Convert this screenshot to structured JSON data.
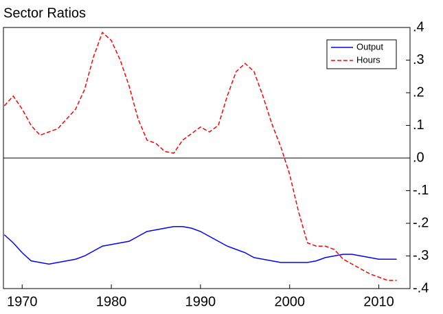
{
  "chart_data": {
    "type": "line",
    "title": "Sector Ratios",
    "x": [
      1968,
      1969,
      1970,
      1971,
      1972,
      1973,
      1974,
      1975,
      1976,
      1977,
      1978,
      1979,
      1980,
      1981,
      1982,
      1983,
      1984,
      1985,
      1986,
      1987,
      1988,
      1989,
      1990,
      1991,
      1992,
      1993,
      1994,
      1995,
      1996,
      1997,
      1998,
      1999,
      2000,
      2001,
      2002,
      2003,
      2004,
      2005,
      2006,
      2007,
      2008,
      2009,
      2010,
      2011,
      2012
    ],
    "series": [
      {
        "name": "Output",
        "color": "#0000ff",
        "dash": false,
        "values": [
          -0.235,
          -0.26,
          -0.29,
          -0.315,
          -0.32,
          -0.325,
          -0.32,
          -0.315,
          -0.31,
          -0.3,
          -0.285,
          -0.27,
          -0.265,
          -0.26,
          -0.255,
          -0.24,
          -0.225,
          -0.22,
          -0.215,
          -0.21,
          -0.21,
          -0.215,
          -0.225,
          -0.24,
          -0.255,
          -0.27,
          -0.28,
          -0.29,
          -0.305,
          -0.31,
          -0.315,
          -0.32,
          -0.32,
          -0.32,
          -0.32,
          -0.315,
          -0.305,
          -0.3,
          -0.295,
          -0.295,
          -0.3,
          -0.305,
          -0.31,
          -0.31,
          -0.31
        ]
      },
      {
        "name": "Hours",
        "color": "#ff0000",
        "dash": true,
        "values": [
          0.16,
          0.19,
          0.15,
          0.1,
          0.07,
          0.08,
          0.09,
          0.12,
          0.15,
          0.21,
          0.31,
          0.385,
          0.36,
          0.3,
          0.22,
          0.12,
          0.055,
          0.045,
          0.02,
          0.015,
          0.055,
          0.075,
          0.095,
          0.08,
          0.1,
          0.19,
          0.265,
          0.29,
          0.265,
          0.19,
          0.105,
          0.035,
          -0.05,
          -0.165,
          -0.26,
          -0.27,
          -0.27,
          -0.28,
          -0.31,
          -0.325,
          -0.34,
          -0.355,
          -0.365,
          -0.375,
          -0.375
        ]
      }
    ],
    "xlim": [
      1967.9,
      2013.5
    ],
    "xticks": [
      1970,
      1980,
      1990,
      2000,
      2010
    ],
    "ylim": [
      -0.4,
      0.4
    ],
    "yticks": [
      {
        "value": 0.4,
        "label": ".4"
      },
      {
        "value": 0.3,
        "label": ".3"
      },
      {
        "value": 0.2,
        "label": ".2"
      },
      {
        "value": 0.1,
        "label": ".1"
      },
      {
        "value": 0,
        "label": ".0"
      },
      {
        "value": -0.1,
        "label": "-.1"
      },
      {
        "value": -0.2,
        "label": "-.2"
      },
      {
        "value": -0.3,
        "label": "-.3"
      },
      {
        "value": -0.4,
        "label": "-.4"
      }
    ],
    "zero_line": true,
    "legend": "upper right"
  }
}
